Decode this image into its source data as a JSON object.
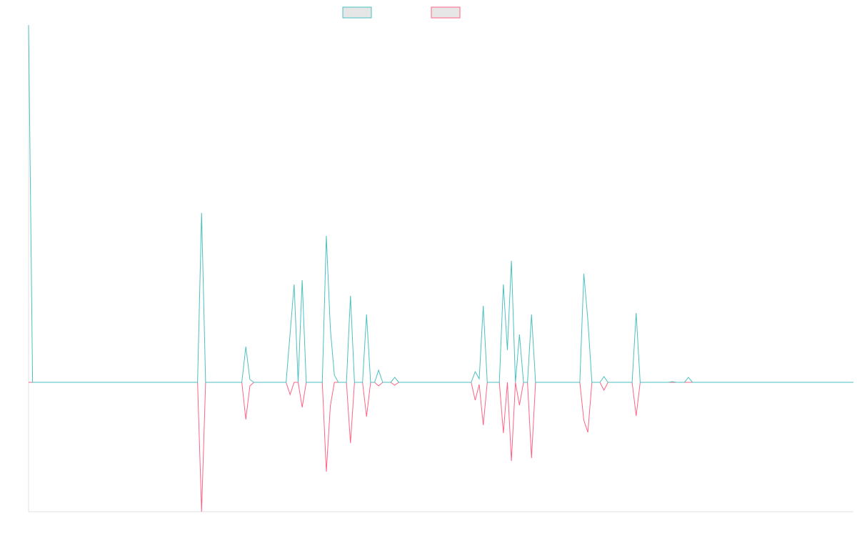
{
  "chart_data": {
    "type": "line",
    "categories": [
      null,
      null,
      null,
      null,
      null,
      null,
      null,
      null,
      null,
      null,
      null,
      null,
      null,
      null,
      null,
      null,
      null,
      null,
      null,
      null,
      null,
      null,
      null,
      null,
      null,
      null,
      null,
      null,
      null,
      null,
      null,
      null,
      null,
      null,
      null,
      null,
      null,
      null,
      null,
      null,
      null,
      null,
      null,
      null,
      null,
      null,
      null,
      null,
      null,
      null,
      null,
      null,
      null,
      null,
      null,
      null,
      null,
      null,
      null,
      null,
      null,
      null,
      null,
      null,
      null,
      null,
      null,
      null,
      null,
      null,
      null,
      null,
      null,
      null,
      null,
      null,
      null,
      null,
      null,
      null,
      null,
      null,
      null,
      null,
      null,
      null,
      null,
      null,
      null,
      null,
      null,
      null,
      null,
      null,
      null,
      null,
      null,
      null,
      null,
      null,
      null,
      null,
      null,
      null,
      null,
      null,
      null,
      null,
      null,
      null,
      null,
      null,
      null,
      null,
      null,
      null,
      null,
      null,
      null,
      null,
      null,
      null,
      null,
      null,
      null,
      null,
      null,
      null,
      null,
      null,
      null,
      null,
      null,
      null,
      null,
      null,
      null,
      null,
      null,
      null,
      null,
      null,
      null,
      null,
      null,
      null,
      null,
      null,
      null,
      null,
      null,
      null,
      null,
      null,
      null,
      null,
      null,
      null,
      null,
      null,
      null,
      null,
      null,
      null,
      null,
      null,
      null,
      null,
      null,
      null,
      null,
      null,
      null,
      null,
      null,
      null,
      null,
      null,
      null,
      null,
      null,
      null,
      null,
      null,
      null,
      null,
      null,
      null,
      null,
      null,
      null,
      null,
      null,
      null,
      null,
      null,
      null,
      null,
      null,
      null,
      null,
      null,
      null,
      null,
      null,
      null
    ],
    "series": [
      {
        "color": "#4bc0c0",
        "values": [
          100,
          0,
          0,
          0,
          0,
          0,
          0,
          0,
          0,
          0,
          0,
          0,
          0,
          0,
          0,
          0,
          0,
          0,
          0,
          0,
          0,
          0,
          0,
          0,
          0,
          0,
          0,
          0,
          0,
          0,
          0,
          0,
          0,
          0,
          0,
          0,
          0,
          0,
          0,
          0,
          0,
          0,
          0,
          47.4,
          0,
          0,
          0,
          0,
          0,
          0,
          0,
          0,
          0,
          0,
          10,
          0.8,
          0,
          0,
          0,
          0,
          0,
          0,
          0,
          0,
          0,
          13.7,
          27.4,
          0,
          28.6,
          0,
          0,
          0,
          0,
          0,
          41,
          15,
          2,
          0,
          0,
          0,
          24.2,
          0,
          0,
          0,
          19,
          0,
          0,
          3.4,
          0,
          0,
          0,
          1.4,
          0,
          0,
          0,
          0,
          0,
          0,
          0,
          0,
          0,
          0,
          0,
          0,
          0,
          0,
          0,
          0,
          0,
          0,
          0,
          3,
          1,
          21.4,
          0,
          0,
          0,
          0,
          27.4,
          9,
          34,
          0,
          13.4,
          0,
          0,
          19,
          0,
          0,
          0,
          0,
          0,
          0,
          0,
          0,
          0,
          0,
          0,
          0,
          30.4,
          17.4,
          0,
          0,
          0,
          1.6,
          0,
          0,
          0,
          0,
          0,
          0,
          0,
          19.4,
          0,
          0,
          0,
          0,
          0,
          0,
          0,
          0,
          0.2,
          0,
          0,
          0,
          1.4,
          0,
          0,
          0,
          0,
          0,
          0,
          0,
          0,
          0,
          0,
          0,
          0,
          0,
          0,
          0,
          0,
          0,
          0,
          0,
          0,
          0,
          0,
          0,
          0,
          0,
          0,
          0,
          0,
          0,
          0,
          0,
          0,
          0,
          0,
          0,
          0,
          0,
          0,
          0,
          0,
          0
        ]
      },
      {
        "color": "#ff6384",
        "values": [
          0,
          0,
          0,
          0,
          0,
          0,
          0,
          0,
          0,
          0,
          0,
          0,
          0,
          0,
          0,
          0,
          0,
          0,
          0,
          0,
          0,
          0,
          0,
          0,
          0,
          0,
          0,
          0,
          0,
          0,
          0,
          0,
          0,
          0,
          0,
          0,
          0,
          0,
          0,
          0,
          0,
          0,
          0,
          -36.2,
          0,
          0,
          0,
          0,
          0,
          0,
          0,
          0,
          0,
          0,
          -10.4,
          -1,
          0,
          0,
          0,
          0,
          0,
          0,
          0,
          0,
          0,
          -3.4,
          0,
          0,
          -7,
          0,
          0,
          0,
          0,
          0,
          -25,
          -6.6,
          0,
          0,
          0,
          0,
          -17,
          0,
          0,
          0,
          -9.6,
          0,
          0,
          -1,
          0,
          0,
          0,
          -0.8,
          0,
          0,
          0,
          0,
          0,
          0,
          0,
          0,
          0,
          0,
          0,
          0,
          0,
          0,
          0,
          0,
          0,
          0,
          0,
          -5,
          -0.6,
          -12,
          0,
          0,
          0,
          0,
          -14.2,
          0,
          -22,
          0,
          -6.4,
          0,
          0,
          -21.2,
          0,
          0,
          0,
          0,
          0,
          0,
          0,
          0,
          0,
          0,
          0,
          0,
          -10.6,
          -14,
          0,
          0,
          0,
          -2.2,
          0,
          0,
          0,
          0,
          0,
          0,
          0,
          -9.4,
          0,
          0,
          0,
          0,
          0,
          0,
          0,
          0,
          0,
          0,
          0,
          0,
          0,
          0,
          0,
          0,
          0,
          0,
          0,
          0,
          0,
          0,
          0,
          0,
          0,
          0,
          0,
          0,
          0,
          0,
          0,
          0,
          0,
          0,
          0,
          0,
          0,
          0,
          0,
          0,
          0,
          0,
          0,
          0,
          0,
          0,
          0,
          0,
          0,
          0,
          0,
          0,
          0,
          0
        ]
      }
    ],
    "ylim": [
      -36.2,
      100
    ]
  }
}
